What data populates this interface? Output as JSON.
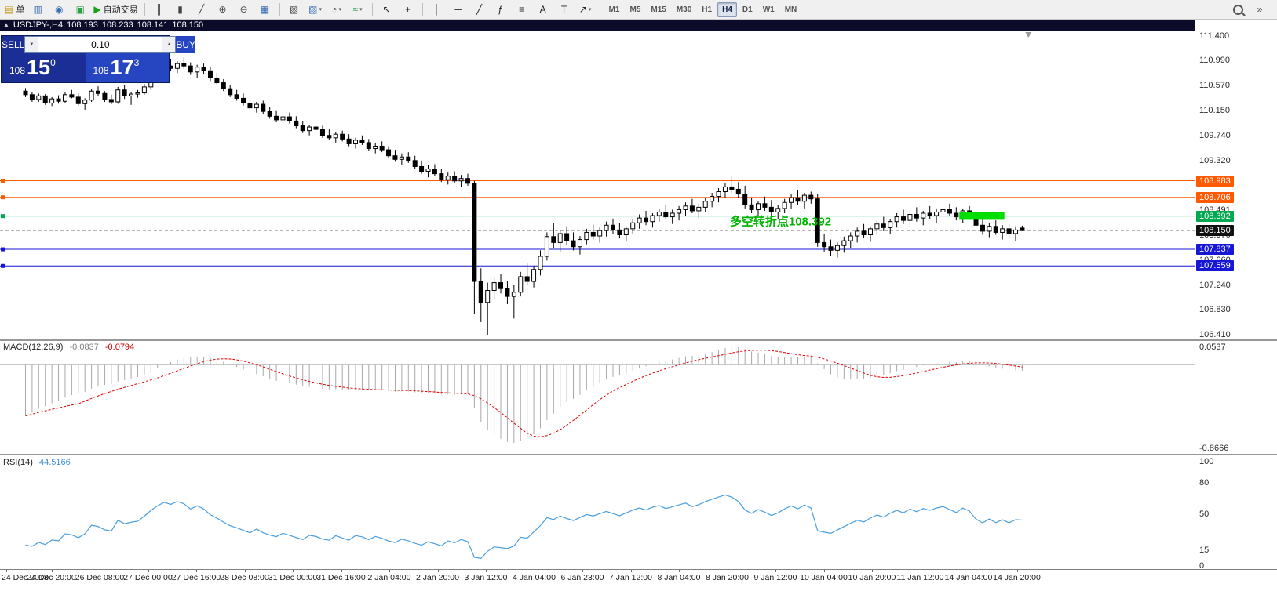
{
  "toolbar": {
    "items": [
      {
        "type": "button",
        "name": "new-order-button",
        "glyph": "▤",
        "glyph_color": "#c9a227",
        "label": "单"
      },
      {
        "type": "button",
        "name": "market-watch-icon",
        "glyph": "▥",
        "glyph_color": "#3a6fb5"
      },
      {
        "type": "button",
        "name": "navigator-icon",
        "glyph": "◉",
        "glyph_color": "#3a6fb5"
      },
      {
        "type": "button",
        "name": "terminal-icon",
        "glyph": "▣",
        "glyph_color": "#2f9e44"
      },
      {
        "type": "button",
        "name": "autotrading-button",
        "glyph": "▶",
        "glyph_color": "#18a018",
        "label": "自动交易"
      },
      {
        "type": "sep"
      },
      {
        "type": "button",
        "name": "bar-chart-icon",
        "glyph": "║",
        "glyph_color": "#444444"
      },
      {
        "type": "button",
        "name": "candlestick-chart-icon",
        "glyph": "▮",
        "glyph_color": "#444444"
      },
      {
        "type": "button",
        "name": "line-chart-icon",
        "glyph": "╱",
        "glyph_color": "#444444"
      },
      {
        "type": "button",
        "name": "zoom-in-icon",
        "glyph": "⊕",
        "glyph_color": "#444444"
      },
      {
        "type": "button",
        "name": "zoom-out-icon",
        "glyph": "⊖",
        "glyph_color": "#444444"
      },
      {
        "type": "button",
        "name": "tile-windows-icon",
        "glyph": "▦",
        "glyph_color": "#3a6fb5"
      },
      {
        "type": "sep"
      },
      {
        "type": "button",
        "name": "arrange-windows-icon",
        "glyph": "▧",
        "glyph_color": "#444444"
      },
      {
        "type": "button",
        "name": "new-chart-dropdown",
        "glyph": "▨",
        "glyph_color": "#3a6fb5",
        "dropdown": true
      },
      {
        "type": "button",
        "name": "periods-dropdown",
        "glyph": "◔",
        "glyph_color": "#444444",
        "dropdown": true
      },
      {
        "type": "button",
        "name": "indicators-dropdown",
        "glyph": "≈",
        "glyph_color": "#2f9e44",
        "dropdown": true
      },
      {
        "type": "sep"
      },
      {
        "type": "button",
        "name": "cursor-icon",
        "glyph": "↖",
        "glyph_color": "#222222"
      },
      {
        "type": "button",
        "name": "crosshair-icon",
        "glyph": "+",
        "glyph_color": "#222222"
      },
      {
        "type": "sep"
      },
      {
        "type": "button",
        "name": "vertical-line-icon",
        "glyph": "│",
        "glyph_color": "#222222"
      },
      {
        "type": "button",
        "name": "horizontal-line-icon",
        "glyph": "─",
        "glyph_color": "#222222"
      },
      {
        "type": "button",
        "name": "trendline-icon",
        "glyph": "╱",
        "glyph_color": "#222222"
      },
      {
        "type": "button",
        "name": "fibonacci-icon",
        "glyph": "ƒ",
        "glyph_color": "#222222"
      },
      {
        "type": "button",
        "name": "channel-icon",
        "glyph": "≡",
        "glyph_color": "#222222"
      },
      {
        "type": "button",
        "name": "text-icon",
        "glyph": "A",
        "glyph_color": "#222222"
      },
      {
        "type": "button",
        "name": "text-label-icon",
        "glyph": "T",
        "glyph_color": "#222222"
      },
      {
        "type": "button",
        "name": "arrows-dropdown",
        "glyph": "↗",
        "glyph_color": "#222222",
        "dropdown": true
      },
      {
        "type": "sep"
      }
    ],
    "timeframes": [
      {
        "label": "M1",
        "active": false
      },
      {
        "label": "M5",
        "active": false
      },
      {
        "label": "M15",
        "active": false
      },
      {
        "label": "M30",
        "active": false
      },
      {
        "label": "H1",
        "active": false
      },
      {
        "label": "H4",
        "active": true
      },
      {
        "label": "D1",
        "active": false
      },
      {
        "label": "W1",
        "active": false
      },
      {
        "label": "MN",
        "active": false
      }
    ],
    "right_items": [
      {
        "name": "search-icon",
        "glyph": ""
      },
      {
        "name": "toolbar-overflow-icon",
        "glyph": "»"
      }
    ]
  },
  "chart": {
    "title": {
      "collapse_icon": "▲",
      "symbol": "USDJPY-,H4",
      "open": "108.193",
      "high": "108.233",
      "low": "108.141",
      "close": "108.150"
    },
    "one_click": {
      "sell_label": "SELL",
      "buy_label": "BUY",
      "volume": "0.10",
      "sell_price_big_figure": "108",
      "sell_price_pips": "15",
      "sell_price_point": "0",
      "buy_price_big_figure": "108",
      "buy_price_pips": "17",
      "buy_price_point": "3"
    },
    "price_axis": [
      "111.400",
      "110.990",
      "110.570",
      "110.150",
      "109.740",
      "109.320",
      "108.910",
      "108.491",
      "108.070",
      "107.660",
      "107.240",
      "106.830",
      "106.410"
    ],
    "time_axis": [
      "24 Dec 2018",
      "24 Dec 20:00",
      "26 Dec 08:00",
      "27 Dec 00:00",
      "27 Dec 16:00",
      "28 Dec 08:00",
      "31 Dec 00:00",
      "31 Dec 16:00",
      "2 Jan 04:00",
      "2 Jan 20:00",
      "3 Jan 12:00",
      "4 Jan 04:00",
      "6 Jan 23:00",
      "7 Jan 12:00",
      "8 Jan 04:00",
      "8 Jan 20:00",
      "9 Jan 12:00",
      "10 Jan 04:00",
      "10 Jan 20:00",
      "11 Jan 12:00",
      "14 Jan 04:00",
      "14 Jan 20:00"
    ],
    "tags": [
      {
        "text": "108.983",
        "bg": "#ff5a00"
      },
      {
        "text": "108.706",
        "bg": "#ff5a00"
      },
      {
        "text": "108.392",
        "bg": "#00a84f"
      },
      {
        "text": "108.150",
        "bg": "#111111"
      },
      {
        "text": "107.837",
        "bg": "#1616d6"
      },
      {
        "text": "107.559",
        "bg": "#1616d6"
      }
    ]
  },
  "indicators": {
    "macd": {
      "name": "MACD(12,26,9)",
      "value1": "-0.0837",
      "value2": "-0.0794",
      "scale_top": "0.0537",
      "scale_bottom": "-0.8666"
    },
    "rsi": {
      "name": "RSI(14)",
      "value": "44.5166",
      "levels": [
        "100",
        "80",
        "50",
        "15",
        "0"
      ]
    }
  },
  "chart_data": {
    "type": "candlestick",
    "symbol": "USDJPY",
    "timeframe": "H4",
    "price_range": [
      106.41,
      111.4
    ],
    "current_price": 108.15,
    "candles": [
      [
        110.48,
        110.53,
        110.38,
        110.42
      ],
      [
        110.42,
        110.47,
        110.3,
        110.34
      ],
      [
        110.34,
        110.44,
        110.3,
        110.4
      ],
      [
        110.4,
        110.43,
        110.25,
        110.28
      ],
      [
        110.28,
        110.38,
        110.23,
        110.35
      ],
      [
        110.35,
        110.41,
        110.27,
        110.31
      ],
      [
        110.31,
        110.46,
        110.28,
        110.42
      ],
      [
        110.42,
        110.5,
        110.36,
        110.38
      ],
      [
        110.38,
        110.44,
        110.24,
        110.27
      ],
      [
        110.27,
        110.36,
        110.17,
        110.33
      ],
      [
        110.33,
        110.52,
        110.3,
        110.48
      ],
      [
        110.48,
        110.56,
        110.4,
        110.44
      ],
      [
        110.44,
        110.48,
        110.3,
        110.34
      ],
      [
        110.34,
        110.42,
        110.26,
        110.3
      ],
      [
        110.3,
        110.55,
        110.27,
        110.5
      ],
      [
        110.5,
        110.58,
        110.35,
        110.4
      ],
      [
        110.4,
        110.47,
        110.25,
        110.43
      ],
      [
        110.43,
        110.5,
        110.37,
        110.45
      ],
      [
        110.45,
        110.6,
        110.42,
        110.55
      ],
      [
        110.55,
        110.72,
        110.5,
        110.68
      ],
      [
        110.68,
        110.85,
        110.62,
        110.8
      ],
      [
        110.8,
        110.95,
        110.72,
        110.9
      ],
      [
        110.9,
        111.02,
        110.82,
        110.86
      ],
      [
        110.86,
        110.98,
        110.78,
        110.94
      ],
      [
        110.94,
        111.04,
        110.85,
        110.9
      ],
      [
        110.9,
        110.96,
        110.75,
        110.8
      ],
      [
        110.8,
        110.92,
        110.7,
        110.88
      ],
      [
        110.88,
        110.94,
        110.76,
        110.82
      ],
      [
        110.82,
        110.88,
        110.65,
        110.7
      ],
      [
        110.7,
        110.78,
        110.58,
        110.62
      ],
      [
        110.62,
        110.68,
        110.48,
        110.52
      ],
      [
        110.52,
        110.58,
        110.38,
        110.42
      ],
      [
        110.42,
        110.5,
        110.32,
        110.36
      ],
      [
        110.36,
        110.44,
        110.24,
        110.28
      ],
      [
        110.28,
        110.36,
        110.16,
        110.2
      ],
      [
        110.2,
        110.3,
        110.12,
        110.26
      ],
      [
        110.26,
        110.32,
        110.1,
        110.14
      ],
      [
        110.14,
        110.22,
        110.02,
        110.06
      ],
      [
        110.06,
        110.16,
        109.96,
        110.0
      ],
      [
        110.0,
        110.1,
        109.9,
        110.05
      ],
      [
        110.05,
        110.12,
        109.94,
        109.98
      ],
      [
        109.98,
        110.06,
        109.86,
        109.9
      ],
      [
        109.9,
        109.98,
        109.78,
        109.82
      ],
      [
        109.82,
        109.92,
        109.74,
        109.88
      ],
      [
        109.88,
        109.95,
        109.8,
        109.84
      ],
      [
        109.84,
        109.9,
        109.7,
        109.74
      ],
      [
        109.74,
        109.84,
        109.66,
        109.7
      ],
      [
        109.7,
        109.8,
        109.62,
        109.76
      ],
      [
        109.76,
        109.82,
        109.64,
        109.68
      ],
      [
        109.68,
        109.76,
        109.56,
        109.6
      ],
      [
        109.6,
        109.7,
        109.52,
        109.66
      ],
      [
        109.66,
        109.74,
        109.58,
        109.62
      ],
      [
        109.62,
        109.68,
        109.48,
        109.52
      ],
      [
        109.52,
        109.62,
        109.44,
        109.56
      ],
      [
        109.56,
        109.64,
        109.46,
        109.5
      ],
      [
        109.5,
        109.56,
        109.36,
        109.4
      ],
      [
        109.4,
        109.5,
        109.3,
        109.34
      ],
      [
        109.34,
        109.44,
        109.24,
        109.38
      ],
      [
        109.38,
        109.46,
        109.28,
        109.32
      ],
      [
        109.32,
        109.4,
        109.18,
        109.22
      ],
      [
        109.22,
        109.32,
        109.1,
        109.14
      ],
      [
        109.14,
        109.24,
        109.04,
        109.18
      ],
      [
        109.18,
        109.26,
        109.06,
        109.1
      ],
      [
        109.1,
        109.18,
        108.96,
        109.0
      ],
      [
        109.0,
        109.12,
        108.92,
        109.06
      ],
      [
        109.06,
        109.14,
        108.94,
        108.98
      ],
      [
        108.98,
        109.08,
        108.88,
        109.02
      ],
      [
        109.02,
        109.1,
        108.9,
        108.94
      ],
      [
        108.94,
        108.98,
        106.75,
        107.3
      ],
      [
        107.3,
        107.52,
        106.62,
        106.95
      ],
      [
        106.95,
        107.28,
        106.41,
        107.15
      ],
      [
        107.15,
        107.36,
        107.0,
        107.28
      ],
      [
        107.28,
        107.42,
        107.1,
        107.18
      ],
      [
        107.18,
        107.3,
        106.92,
        107.05
      ],
      [
        107.05,
        107.24,
        106.68,
        107.12
      ],
      [
        107.12,
        107.46,
        107.05,
        107.38
      ],
      [
        107.38,
        107.6,
        107.25,
        107.3
      ],
      [
        107.3,
        107.56,
        107.2,
        107.5
      ],
      [
        107.5,
        107.82,
        107.4,
        107.72
      ],
      [
        107.72,
        108.12,
        107.65,
        108.05
      ],
      [
        108.05,
        108.28,
        107.85,
        107.95
      ],
      [
        107.95,
        108.16,
        107.8,
        108.1
      ],
      [
        108.1,
        108.22,
        107.9,
        107.98
      ],
      [
        107.98,
        108.12,
        107.82,
        107.88
      ],
      [
        107.88,
        108.06,
        107.75,
        108.0
      ],
      [
        108.0,
        108.18,
        107.92,
        108.12
      ],
      [
        108.12,
        108.25,
        108.0,
        108.06
      ],
      [
        108.06,
        108.2,
        107.95,
        108.15
      ],
      [
        108.15,
        108.3,
        108.05,
        108.24
      ],
      [
        108.24,
        108.35,
        108.1,
        108.16
      ],
      [
        108.16,
        108.28,
        108.02,
        108.08
      ],
      [
        108.08,
        108.22,
        107.98,
        108.18
      ],
      [
        108.18,
        108.34,
        108.1,
        108.28
      ],
      [
        108.28,
        108.42,
        108.18,
        108.36
      ],
      [
        108.36,
        108.48,
        108.24,
        108.3
      ],
      [
        108.3,
        108.44,
        108.2,
        108.4
      ],
      [
        108.4,
        108.52,
        108.3,
        108.46
      ],
      [
        108.46,
        108.58,
        108.34,
        108.38
      ],
      [
        108.38,
        108.5,
        108.26,
        108.44
      ],
      [
        108.44,
        108.56,
        108.32,
        108.5
      ],
      [
        108.5,
        108.62,
        108.4,
        108.56
      ],
      [
        108.56,
        108.68,
        108.44,
        108.48
      ],
      [
        108.48,
        108.6,
        108.36,
        108.54
      ],
      [
        108.54,
        108.7,
        108.46,
        108.64
      ],
      [
        108.64,
        108.78,
        108.54,
        108.72
      ],
      [
        108.72,
        108.86,
        108.62,
        108.8
      ],
      [
        108.8,
        108.95,
        108.7,
        108.88
      ],
      [
        108.88,
        109.05,
        108.78,
        108.84
      ],
      [
        108.84,
        108.96,
        108.7,
        108.76
      ],
      [
        108.76,
        108.9,
        108.52,
        108.58
      ],
      [
        108.58,
        108.7,
        108.44,
        108.5
      ],
      [
        108.5,
        108.64,
        108.4,
        108.6
      ],
      [
        108.6,
        108.72,
        108.48,
        108.54
      ],
      [
        108.54,
        108.66,
        108.4,
        108.46
      ],
      [
        108.46,
        108.58,
        108.34,
        108.52
      ],
      [
        108.52,
        108.68,
        108.44,
        108.62
      ],
      [
        108.62,
        108.76,
        108.52,
        108.7
      ],
      [
        108.7,
        108.82,
        108.58,
        108.64
      ],
      [
        108.64,
        108.78,
        108.52,
        108.74
      ],
      [
        108.74,
        108.8,
        108.6,
        108.68
      ],
      [
        108.68,
        108.76,
        107.88,
        107.95
      ],
      [
        107.95,
        108.1,
        107.8,
        107.88
      ],
      [
        107.88,
        108.0,
        107.72,
        107.82
      ],
      [
        107.82,
        107.95,
        107.7,
        107.9
      ],
      [
        107.9,
        108.05,
        107.78,
        107.98
      ],
      [
        107.98,
        108.12,
        107.85,
        108.06
      ],
      [
        108.06,
        108.2,
        107.95,
        108.14
      ],
      [
        108.14,
        108.26,
        108.02,
        108.08
      ],
      [
        108.08,
        108.22,
        107.96,
        108.18
      ],
      [
        108.18,
        108.32,
        108.08,
        108.26
      ],
      [
        108.26,
        108.38,
        108.14,
        108.2
      ],
      [
        108.2,
        108.34,
        108.1,
        108.3
      ],
      [
        108.3,
        108.44,
        108.2,
        108.38
      ],
      [
        108.38,
        108.5,
        108.26,
        108.32
      ],
      [
        108.32,
        108.46,
        108.22,
        108.42
      ],
      [
        108.42,
        108.54,
        108.3,
        108.36
      ],
      [
        108.36,
        108.48,
        108.24,
        108.44
      ],
      [
        108.44,
        108.56,
        108.34,
        108.4
      ],
      [
        108.4,
        108.52,
        108.28,
        108.46
      ],
      [
        108.46,
        108.58,
        108.36,
        108.5
      ],
      [
        108.5,
        108.6,
        108.4,
        108.44
      ],
      [
        108.44,
        108.54,
        108.32,
        108.38
      ],
      [
        108.38,
        108.52,
        108.28,
        108.48
      ],
      [
        108.48,
        108.56,
        108.38,
        108.42
      ],
      [
        108.42,
        108.5,
        108.18,
        108.24
      ],
      [
        108.24,
        108.36,
        108.08,
        108.14
      ],
      [
        108.14,
        108.28,
        108.04,
        108.22
      ],
      [
        108.22,
        108.32,
        108.08,
        108.12
      ],
      [
        108.12,
        108.24,
        108.0,
        108.18
      ],
      [
        108.18,
        108.26,
        108.04,
        108.1
      ],
      [
        108.1,
        108.22,
        107.98,
        108.16
      ],
      [
        108.193,
        108.233,
        108.141,
        108.15
      ]
    ],
    "hlines": [
      {
        "price": 108.983,
        "color": "#ff5a00"
      },
      {
        "price": 108.706,
        "color": "#ff5a00"
      },
      {
        "price": 108.392,
        "color": "#00a84f"
      },
      {
        "price": 107.837,
        "color": "#1616d6"
      },
      {
        "price": 107.559,
        "color": "#1616d6"
      }
    ],
    "annotation": {
      "text": "多空转折点108.392",
      "color": "#00b400",
      "index": 107,
      "price": 108.3
    },
    "highlight_band": {
      "start_index": 142,
      "end_index": 148,
      "price_top": 108.46,
      "price_bottom": 108.33,
      "color": "#00dd00"
    },
    "indicators": {
      "macd": {
        "fast": 12,
        "slow": 26,
        "signal": 9
      },
      "rsi": {
        "period": 14
      }
    }
  }
}
